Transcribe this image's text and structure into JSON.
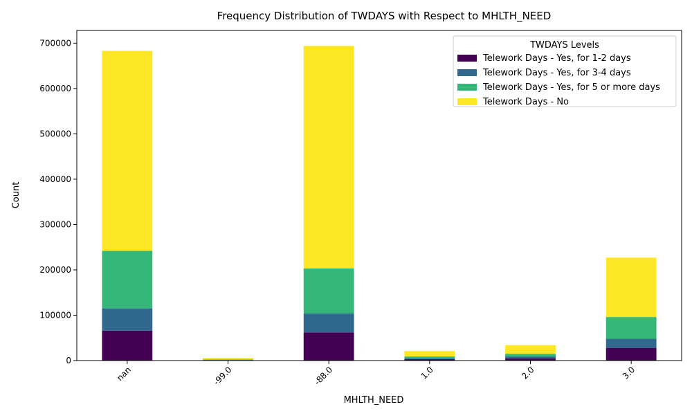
{
  "chart_data": {
    "type": "bar",
    "stacked": true,
    "title": "Frequency Distribution of TWDAYS with Respect to MHLTH_NEED",
    "xlabel": "MHLTH_NEED",
    "ylabel": "Count",
    "categories": [
      "nan",
      "-99.0",
      "-88.0",
      "1.0",
      "2.0",
      "3.0"
    ],
    "ylim": [
      0,
      728000
    ],
    "yticks": [
      0,
      100000,
      200000,
      300000,
      400000,
      500000,
      600000,
      700000
    ],
    "grid": false,
    "legend": {
      "title": "TWDAYS Levels",
      "placement": "top-right"
    },
    "series": [
      {
        "name": "Telework Days - Yes, for 1-2 days",
        "color": "#440154",
        "values": [
          66000,
          1000,
          62000,
          3000,
          5000,
          28000
        ]
      },
      {
        "name": "Telework Days - Yes, for 3-4 days",
        "color": "#31688e",
        "values": [
          49000,
          500,
          42000,
          2000,
          4000,
          20000
        ]
      },
      {
        "name": "Telework Days - Yes, for 5 or more days",
        "color": "#35b779",
        "values": [
          127000,
          1000,
          99000,
          4000,
          6000,
          48000
        ]
      },
      {
        "name": "Telework Days - No",
        "color": "#fde725",
        "values": [
          441000,
          3500,
          491000,
          12000,
          19000,
          131000
        ]
      }
    ]
  }
}
